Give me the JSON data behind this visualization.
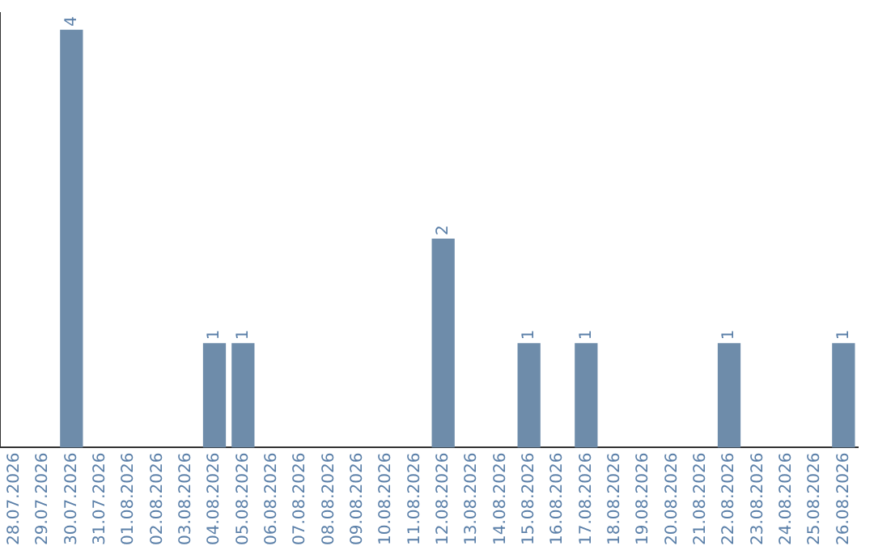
{
  "chart_data": {
    "type": "bar",
    "categories": [
      "28.07.2026",
      "29.07.2026",
      "30.07.2026",
      "31.07.2026",
      "01.08.2026",
      "02.08.2026",
      "03.08.2026",
      "04.08.2026",
      "05.08.2026",
      "06.08.2026",
      "07.08.2026",
      "08.08.2026",
      "09.08.2026",
      "10.08.2026",
      "11.08.2026",
      "12.08.2026",
      "13.08.2026",
      "14.08.2026",
      "15.08.2026",
      "16.08.2026",
      "17.08.2026",
      "18.08.2026",
      "19.08.2026",
      "20.08.2026",
      "21.08.2026",
      "22.08.2026",
      "23.08.2026",
      "24.08.2026",
      "25.08.2026",
      "26.08.2026"
    ],
    "values": [
      0,
      0,
      4,
      0,
      0,
      0,
      0,
      1,
      1,
      0,
      0,
      0,
      0,
      0,
      0,
      2,
      0,
      0,
      1,
      0,
      1,
      0,
      0,
      0,
      0,
      1,
      0,
      0,
      0,
      1
    ],
    "value_labels": [
      null,
      null,
      "4",
      null,
      null,
      null,
      null,
      "1",
      "1",
      null,
      null,
      null,
      null,
      null,
      null,
      "2",
      null,
      null,
      "1",
      null,
      "1",
      null,
      null,
      null,
      null,
      "1",
      null,
      null,
      null,
      "1"
    ],
    "color": "#6e8caa",
    "ylim": [
      0,
      4.16
    ],
    "tick_labels": "x",
    "grid": false,
    "legend": false
  }
}
